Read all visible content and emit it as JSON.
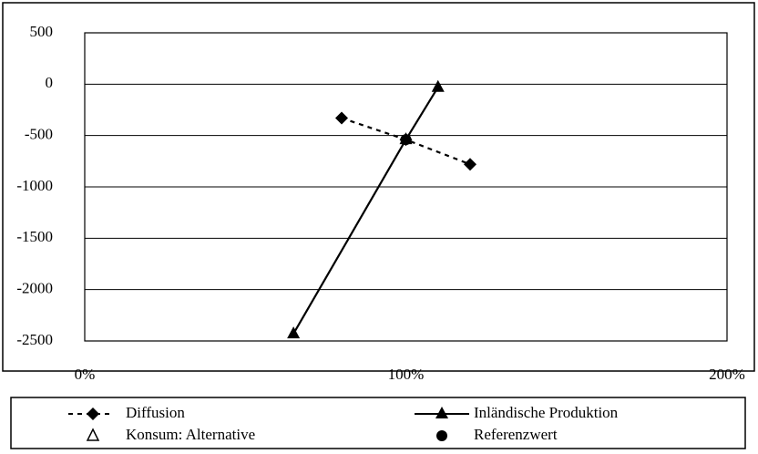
{
  "chart_data": {
    "type": "line",
    "xlim": [
      0,
      200
    ],
    "xticks": [
      {
        "value": 0,
        "label": "0%"
      },
      {
        "value": 100,
        "label": "100%"
      },
      {
        "value": 200,
        "label": "200%"
      }
    ],
    "ylim": [
      -2500,
      500
    ],
    "yticks": [
      500,
      0,
      -500,
      -1000,
      -1500,
      -2000,
      -2500
    ],
    "grid": true,
    "legend": "bottom",
    "series": [
      {
        "name": "Diffusion",
        "color": "#000000",
        "marker": "diamond",
        "line": "dashed",
        "x": [
          80,
          100,
          120
        ],
        "values": [
          -330,
          -540,
          -780
        ]
      },
      {
        "name": "Inländische Produktion",
        "color": "#000000",
        "marker": "triangle",
        "line": "solid",
        "x": [
          65,
          100,
          110
        ],
        "values": [
          -2430,
          -540,
          -30
        ]
      },
      {
        "name": "Konsum: Alternative",
        "color": "#000000",
        "marker": "triangle-open",
        "line": "none",
        "x": [],
        "values": []
      },
      {
        "name": "Referenzwert",
        "color": "#000000",
        "marker": "circle",
        "line": "none",
        "x": [
          100
        ],
        "values": [
          -540
        ]
      }
    ]
  }
}
